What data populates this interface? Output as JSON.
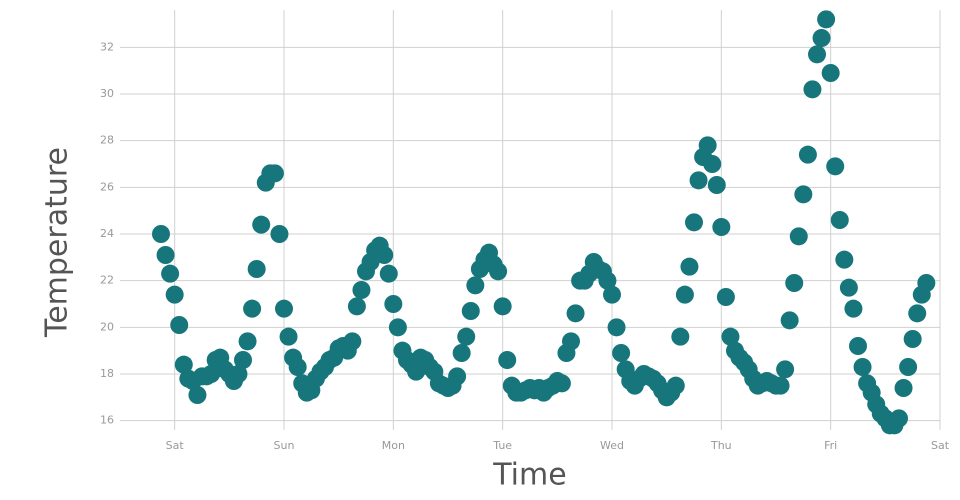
{
  "chart_data": {
    "type": "scatter",
    "x_label": "Time",
    "y_label": "Temperature",
    "xlim": [
      -12,
      168
    ],
    "ylim": [
      15.6,
      33.6
    ],
    "xticks": [
      {
        "value": 0,
        "label": "Sat"
      },
      {
        "value": 24,
        "label": "Sun"
      },
      {
        "value": 48,
        "label": "Mon"
      },
      {
        "value": 72,
        "label": "Tue"
      },
      {
        "value": 96,
        "label": "Wed"
      },
      {
        "value": 120,
        "label": "Thu"
      },
      {
        "value": 144,
        "label": "Fri"
      },
      {
        "value": 168,
        "label": "Sat"
      }
    ],
    "yticks": [
      16,
      18,
      20,
      22,
      24,
      26,
      28,
      30,
      32
    ],
    "grid": true,
    "color": "#17767c",
    "x": [
      -3,
      -2,
      -1,
      0,
      1,
      2,
      3,
      4,
      5,
      6,
      7,
      8,
      9,
      10,
      11,
      12,
      13,
      14,
      15,
      16,
      17,
      18,
      19,
      20,
      21,
      22,
      23,
      24,
      25,
      26,
      27,
      28,
      29,
      30,
      31,
      32,
      33,
      34,
      35,
      36,
      37,
      38,
      39,
      40,
      41,
      42,
      43,
      44,
      45,
      46,
      47,
      48,
      49,
      50,
      51,
      52,
      53,
      54,
      55,
      56,
      57,
      58,
      59,
      60,
      61,
      62,
      63,
      64,
      65,
      66,
      67,
      68,
      69,
      70,
      71,
      72,
      73,
      74,
      75,
      76,
      77,
      78,
      79,
      80,
      81,
      82,
      83,
      84,
      85,
      86,
      87,
      88,
      89,
      90,
      91,
      92,
      93,
      94,
      95,
      96,
      97,
      98,
      99,
      100,
      101,
      102,
      103,
      104,
      105,
      106,
      107,
      108,
      109,
      110,
      111,
      112,
      113,
      114,
      115,
      116,
      117,
      118,
      119,
      120,
      121,
      122,
      123,
      124,
      125,
      126,
      127,
      128,
      129,
      130,
      131,
      132,
      133,
      134,
      135,
      136,
      137,
      138,
      139,
      140,
      141,
      142,
      143,
      144,
      145,
      146,
      147,
      148,
      149,
      150,
      151,
      152,
      153,
      154,
      155,
      156,
      157,
      158,
      159,
      160,
      161,
      162,
      163,
      164,
      165
    ],
    "values": [
      24.0,
      23.1,
      22.3,
      21.4,
      20.1,
      18.4,
      17.8,
      17.7,
      17.1,
      17.9,
      17.9,
      18.0,
      18.6,
      18.7,
      18.2,
      18.0,
      17.7,
      18.0,
      18.6,
      19.4,
      20.8,
      22.5,
      24.4,
      26.2,
      26.6,
      26.6,
      24.0,
      20.8,
      19.6,
      18.7,
      18.3,
      17.6,
      17.2,
      17.3,
      17.8,
      18.1,
      18.3,
      18.6,
      18.7,
      19.1,
      19.2,
      19.0,
      19.4,
      20.9,
      21.6,
      22.4,
      22.8,
      23.3,
      23.5,
      23.1,
      22.3,
      21.0,
      20.0,
      19.0,
      18.6,
      18.4,
      18.1,
      18.7,
      18.6,
      18.3,
      18.1,
      17.6,
      17.5,
      17.4,
      17.5,
      17.9,
      18.9,
      19.6,
      20.7,
      21.8,
      22.5,
      22.9,
      23.2,
      22.7,
      22.4,
      20.9,
      18.6,
      17.5,
      17.2,
      17.2,
      17.3,
      17.4,
      17.3,
      17.4,
      17.2,
      17.4,
      17.5,
      17.7,
      17.6,
      18.9,
      19.4,
      20.6,
      22.0,
      22.0,
      22.3,
      22.8,
      22.5,
      22.4,
      22.0,
      21.4,
      20.0,
      18.9,
      18.2,
      17.7,
      17.5,
      17.8,
      18.0,
      17.9,
      17.8,
      17.6,
      17.3,
      17.0,
      17.2,
      17.5,
      19.6,
      21.4,
      22.6,
      24.5,
      26.3,
      27.3,
      27.8,
      27.0,
      26.1,
      24.3,
      21.3,
      19.6,
      19.0,
      18.7,
      18.5,
      18.2,
      17.8,
      17.5,
      17.6,
      17.7,
      17.6,
      17.5,
      17.5,
      18.2,
      20.3,
      21.9,
      23.9,
      25.7,
      27.4,
      30.2,
      31.7,
      32.4,
      33.2,
      30.9,
      26.9,
      24.6,
      22.9,
      21.7,
      20.8,
      19.2,
      18.3,
      17.6,
      17.2,
      16.7,
      16.3,
      16.1,
      15.8,
      15.8,
      16.1,
      17.4,
      18.3,
      19.5,
      20.6,
      21.4,
      21.9
    ]
  }
}
